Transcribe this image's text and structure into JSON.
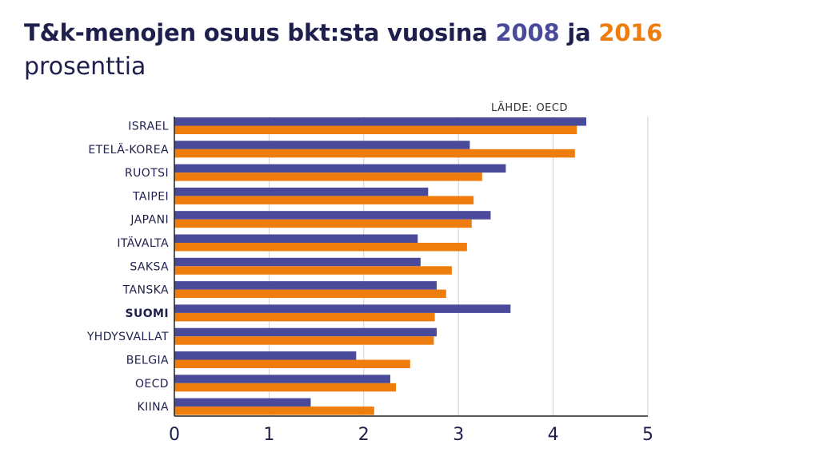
{
  "title": {
    "prefix": "T&k-menojen osuus bkt:sta vuosina ",
    "year1": "2008",
    "middle": " ja ",
    "year2": "2016"
  },
  "subtitle": "prosenttia",
  "source": "LÄHDE: OECD",
  "colors": {
    "series_2008": "#4a4a9a",
    "series_2016": "#ee7d0d",
    "title": "#1f1f4d",
    "text": "#1f1f4d",
    "grid": "#d0d0d0"
  },
  "chart_data": {
    "type": "bar",
    "orientation": "horizontal",
    "categories": [
      "ISRAEL",
      "ETELÄ-KOREA",
      "RUOTSI",
      "TAIPEI",
      "JAPANI",
      "ITÄVALTA",
      "SAKSA",
      "TANSKA",
      "SUOMI",
      "YHDYSVALLAT",
      "BELGIA",
      "OECD",
      "KIINA"
    ],
    "highlighted_category": "SUOMI",
    "series": [
      {
        "name": "2008",
        "values": [
          4.35,
          3.12,
          3.5,
          2.68,
          3.34,
          2.57,
          2.6,
          2.77,
          3.55,
          2.77,
          1.92,
          2.28,
          1.44
        ]
      },
      {
        "name": "2016",
        "values": [
          4.25,
          4.23,
          3.25,
          3.16,
          3.14,
          3.09,
          2.93,
          2.87,
          2.75,
          2.74,
          2.49,
          2.34,
          2.11
        ]
      }
    ],
    "xlim": [
      0,
      5
    ],
    "xticks": [
      "0",
      "1",
      "2",
      "3",
      "4",
      "5"
    ],
    "grid": true
  }
}
